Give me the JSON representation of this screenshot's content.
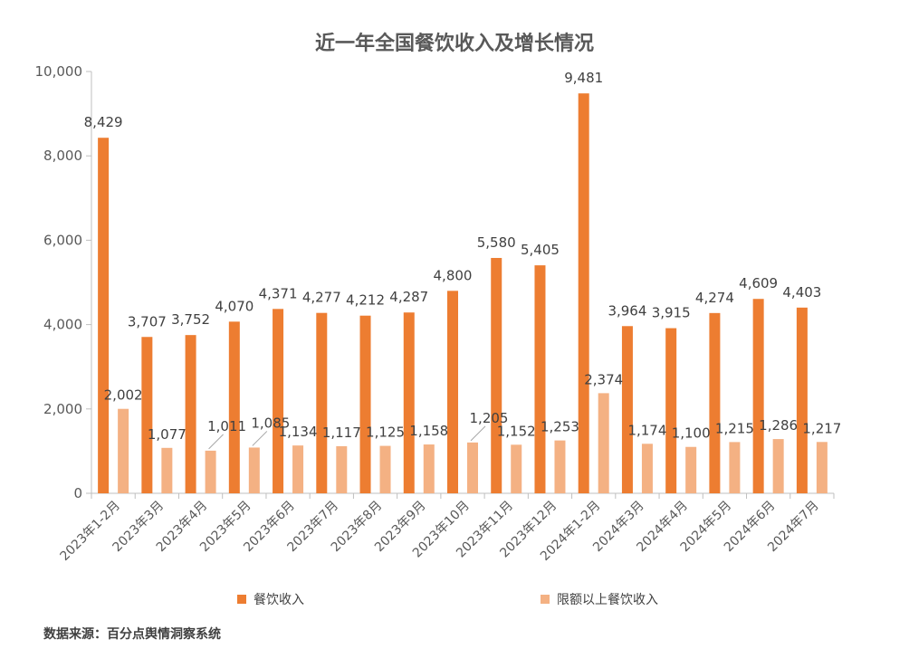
{
  "chart_data": {
    "type": "bar",
    "title": "近一年全国餐饮收入及增长情况",
    "categories": [
      "2023年1-2月",
      "2023年3月",
      "2023年4月",
      "2023年5月",
      "2023年6月",
      "2023年7月",
      "2023年8月",
      "2023年9月",
      "2023年10月",
      "2023年11月",
      "2023年12月",
      "2024年1-2月",
      "2024年3月",
      "2024年4月",
      "2024年5月",
      "2024年6月",
      "2024年7月"
    ],
    "series": [
      {
        "name": "餐饮收入",
        "color": "#ED7D31",
        "values": [
          8429,
          3707,
          3752,
          4070,
          4371,
          4277,
          4212,
          4287,
          4800,
          5580,
          5405,
          9481,
          3964,
          3915,
          4274,
          4609,
          4403
        ],
        "labels": [
          "8,429",
          "3,707",
          "3,752",
          "4,070",
          "4,371",
          "4,277",
          "4,212",
          "4,287",
          "4,800",
          "5,580",
          "5,405",
          "9,481",
          "3,964",
          "3,915",
          "4,274",
          "4,609",
          "4,403"
        ]
      },
      {
        "name": "限额以上餐饮收入",
        "color": "#F4B183",
        "values": [
          2002,
          1077,
          1011,
          1085,
          1134,
          1117,
          1125,
          1158,
          1205,
          1152,
          1253,
          2374,
          1174,
          1100,
          1215,
          1286,
          1217
        ],
        "labels": [
          "2,002",
          "1,077",
          "1,011",
          "1,085",
          "1,134",
          "1,117",
          "1,125",
          "1,158",
          "1,205",
          "1,152",
          "1,253",
          "2,374",
          "1,174",
          "1,100",
          "1,215",
          "1,286",
          "1,217"
        ]
      }
    ],
    "ylim": [
      0,
      10000
    ],
    "yticks": [
      0,
      2000,
      4000,
      6000,
      8000,
      10000
    ],
    "ytick_labels": [
      "0",
      "2,000",
      "4,000",
      "6,000",
      "8,000",
      "10,000"
    ],
    "xlabel": "",
    "ylabel": "",
    "legend_position": "bottom",
    "grid": false
  },
  "source_note": "数据来源：百分点舆情洞察系统"
}
